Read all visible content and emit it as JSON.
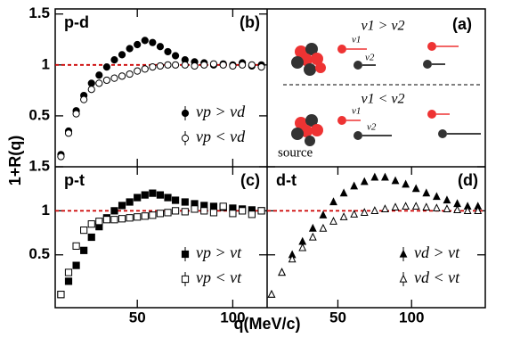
{
  "chart_data": [
    {
      "type": "scatter",
      "title": "p-d",
      "panel_label": "(b)",
      "ylabel": "1+R(q)",
      "xlim": [
        7,
        118
      ],
      "ylim": [
        0,
        1.55
      ],
      "xticks": [
        50,
        100
      ],
      "yticks": [
        0.5,
        1,
        1.5
      ],
      "show_xtick_labels": false,
      "show_ytick_labels": true,
      "reference_line": 1,
      "reference_color": "#cc0000",
      "legend": "lower right",
      "x": [
        10,
        14,
        18,
        22,
        26,
        30,
        34,
        38,
        42,
        46,
        50,
        54,
        58,
        62,
        66,
        70,
        75,
        80,
        85,
        90,
        95,
        100,
        105,
        110,
        115
      ],
      "series": [
        {
          "name": "vp > vd",
          "color": "#000000",
          "marker": "filled-circle",
          "values": [
            0.12,
            0.35,
            0.55,
            0.7,
            0.82,
            0.9,
            0.98,
            1.05,
            1.1,
            1.16,
            1.2,
            1.24,
            1.22,
            1.18,
            1.13,
            1.09,
            1.05,
            1.03,
            1.02,
            1.0,
            1.01,
            1.0,
            1.02,
            0.99,
            1.0
          ]
        },
        {
          "name": "vp < vd",
          "color": "#000000",
          "marker": "open-circle",
          "values": [
            0.1,
            0.33,
            0.52,
            0.66,
            0.76,
            0.82,
            0.85,
            0.87,
            0.89,
            0.91,
            0.94,
            0.96,
            0.98,
            0.99,
            1.0,
            1.0,
            1.0,
            0.99,
            1.0,
            1.01,
            1.0,
            0.99,
            1.0,
            1.0,
            0.98
          ]
        }
      ]
    },
    {
      "type": "scatter",
      "title": "p-t",
      "panel_label": "(c)",
      "xlim": [
        7,
        118
      ],
      "ylim": [
        -0.1,
        1.5
      ],
      "xticks": [
        50,
        100
      ],
      "yticks": [
        0.5,
        1,
        1.5
      ],
      "show_xtick_labels": true,
      "show_ytick_labels": true,
      "reference_line": 1,
      "reference_color": "#cc0000",
      "legend": "lower right",
      "x": [
        10,
        14,
        18,
        22,
        26,
        30,
        34,
        38,
        42,
        46,
        50,
        54,
        58,
        62,
        66,
        70,
        75,
        80,
        85,
        90,
        95,
        100,
        105,
        110,
        115
      ],
      "series": [
        {
          "name": "vp > vt",
          "color": "#000000",
          "marker": "filled-square",
          "values": [
            0.05,
            0.2,
            0.38,
            0.55,
            0.7,
            0.82,
            0.92,
            1.0,
            1.06,
            1.1,
            1.15,
            1.18,
            1.2,
            1.18,
            1.15,
            1.12,
            1.1,
            1.08,
            1.06,
            1.05,
            1.04,
            1.03,
            1.02,
            1.01,
            1.0
          ]
        },
        {
          "name": "vp < vt",
          "color": "#000000",
          "marker": "open-square",
          "values": [
            0.05,
            0.3,
            0.6,
            0.78,
            0.85,
            0.88,
            0.9,
            0.9,
            0.91,
            0.92,
            0.93,
            0.94,
            0.95,
            0.97,
            0.98,
            1.0,
            0.99,
            1.02,
            1.0,
            0.98,
            1.05,
            0.97,
            1.0,
            0.96,
            1.0
          ]
        }
      ]
    },
    {
      "type": "scatter",
      "title": "d-t",
      "panel_label": "(d)",
      "xlabel": "q(MeV/c)",
      "xlim": [
        2,
        150
      ],
      "ylim": [
        -0.1,
        1.5
      ],
      "xticks": [
        50,
        100
      ],
      "yticks": [
        0.5,
        1,
        1.5
      ],
      "show_xtick_labels": true,
      "show_ytick_labels": false,
      "reference_line": 1,
      "reference_color": "#cc0000",
      "legend": "lower right",
      "x": [
        5,
        12,
        19,
        26,
        33,
        40,
        47,
        54,
        61,
        68,
        75,
        82,
        89,
        96,
        103,
        110,
        117,
        124,
        131,
        138,
        145
      ],
      "series": [
        {
          "name": "vd > vt",
          "color": "#000000",
          "marker": "filled-triangle",
          "values": [
            0.05,
            0.3,
            0.5,
            0.65,
            0.8,
            0.95,
            1.1,
            1.2,
            1.28,
            1.33,
            1.38,
            1.38,
            1.34,
            1.3,
            1.25,
            1.2,
            1.16,
            1.12,
            1.08,
            1.05,
            1.05
          ]
        },
        {
          "name": "vd < vt",
          "color": "#000000",
          "marker": "open-triangle",
          "values": [
            0.05,
            0.3,
            0.45,
            0.58,
            0.7,
            0.8,
            0.88,
            0.93,
            0.96,
            0.98,
            1.0,
            1.02,
            1.04,
            1.05,
            1.05,
            1.04,
            1.03,
            1.02,
            1.01,
            1.0,
            1.0
          ]
        }
      ]
    }
  ],
  "diagram": {
    "panel_label": "(a)",
    "relations": [
      "v1 > v2",
      "v1 < v2"
    ],
    "arrow_labels": [
      "v1",
      "v2",
      "v1",
      "v2"
    ],
    "source_label": "source"
  }
}
